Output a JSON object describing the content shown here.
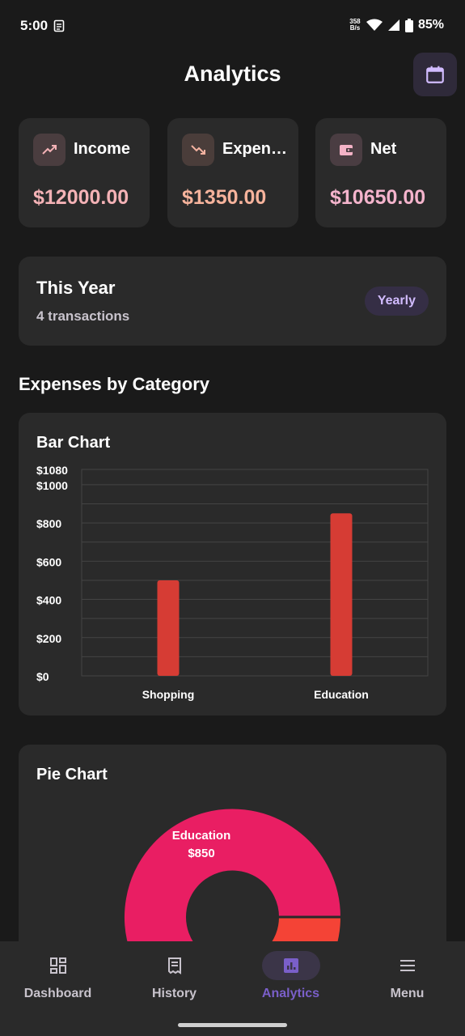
{
  "status": {
    "time": "5:00",
    "net_speed": "358 B/s",
    "battery": "85%"
  },
  "header": {
    "title": "Analytics"
  },
  "summary": [
    {
      "label": "Income",
      "value": "$12000.00",
      "icon": "trending-up-icon"
    },
    {
      "label": "Expen…",
      "value": "$1350.00",
      "icon": "trending-down-icon"
    },
    {
      "label": "Net",
      "value": "$10650.00",
      "icon": "wallet-icon"
    }
  ],
  "period": {
    "title": "This Year",
    "subtitle": "4 transactions",
    "badge": "Yearly"
  },
  "section_title": "Expenses by Category",
  "bar_card": {
    "title": "Bar Chart"
  },
  "pie_card": {
    "title": "Pie Chart"
  },
  "colors": {
    "bar": "#d63c34",
    "pie_primary": "#e91e63",
    "pie_secondary": "#f44336",
    "accent": "#d2bcff"
  },
  "chart_data": [
    {
      "type": "bar",
      "categories": [
        "Shopping",
        "Education"
      ],
      "values": [
        500,
        850
      ],
      "ylim": [
        0,
        1080
      ],
      "y_ticks": [
        "$0",
        "$200",
        "$400",
        "$600",
        "$800",
        "$1000",
        "$1080"
      ],
      "y_tick_values": [
        0,
        200,
        400,
        600,
        800,
        1000,
        1080
      ],
      "grid": true
    },
    {
      "type": "pie",
      "categories": [
        "Education",
        "Shopping"
      ],
      "values": [
        850,
        500
      ],
      "labels": [
        {
          "category": "Education",
          "value": "$850"
        }
      ]
    }
  ],
  "nav": [
    {
      "label": "Dashboard",
      "icon": "dashboard-icon"
    },
    {
      "label": "History",
      "icon": "receipt-icon"
    },
    {
      "label": "Analytics",
      "icon": "analytics-icon",
      "active": true
    },
    {
      "label": "Menu",
      "icon": "menu-icon"
    }
  ]
}
